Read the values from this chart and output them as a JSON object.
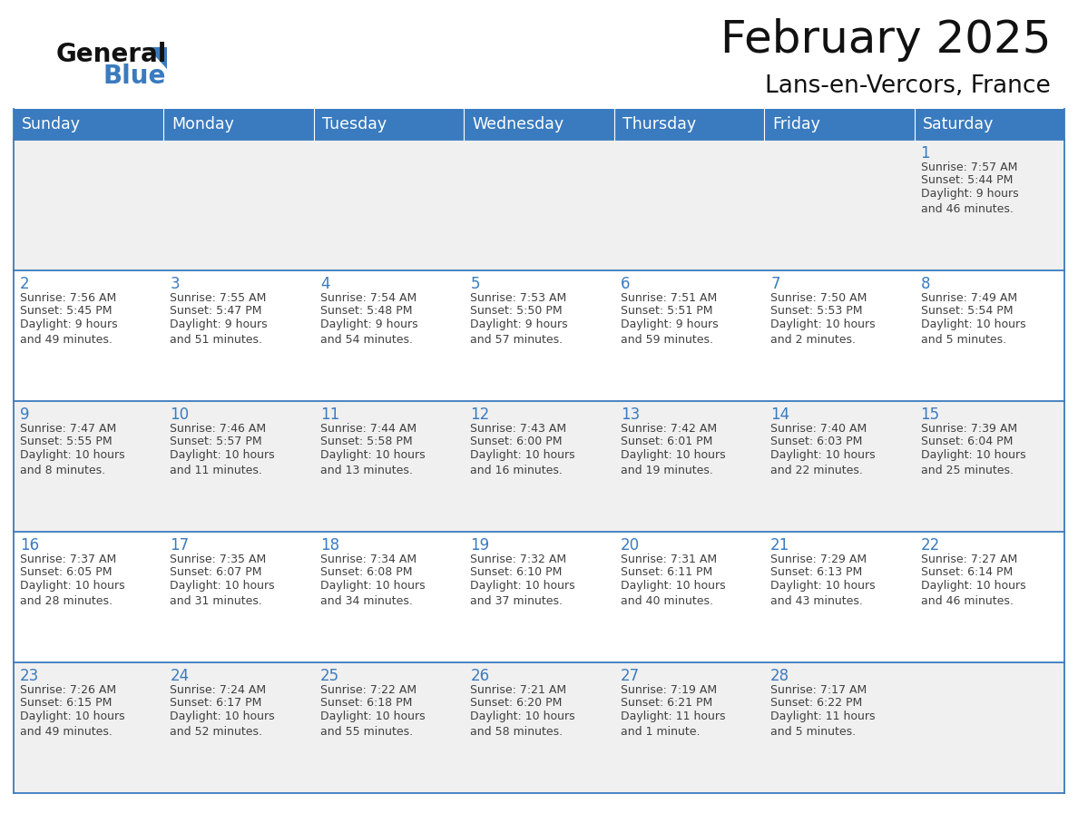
{
  "title": "February 2025",
  "subtitle": "Lans-en-Vercors, France",
  "days_of_week": [
    "Sunday",
    "Monday",
    "Tuesday",
    "Wednesday",
    "Thursday",
    "Friday",
    "Saturday"
  ],
  "header_bg": "#3a7bbf",
  "header_text": "#ffffff",
  "row_bg_odd": "#f0f0f0",
  "row_bg_even": "#ffffff",
  "cell_border": "#3a7bbf",
  "day_number_color": "#3a7bbf",
  "info_text_color": "#404040",
  "title_color": "#111111",
  "subtitle_color": "#111111",
  "logo_general_color": "#111111",
  "logo_blue_color": "#3a7bbf",
  "calendar_data": [
    [
      null,
      null,
      null,
      null,
      null,
      null,
      {
        "day": 1,
        "sunrise": "7:57 AM",
        "sunset": "5:44 PM",
        "daylight": "9 hours\nand 46 minutes."
      }
    ],
    [
      {
        "day": 2,
        "sunrise": "7:56 AM",
        "sunset": "5:45 PM",
        "daylight": "9 hours\nand 49 minutes."
      },
      {
        "day": 3,
        "sunrise": "7:55 AM",
        "sunset": "5:47 PM",
        "daylight": "9 hours\nand 51 minutes."
      },
      {
        "day": 4,
        "sunrise": "7:54 AM",
        "sunset": "5:48 PM",
        "daylight": "9 hours\nand 54 minutes."
      },
      {
        "day": 5,
        "sunrise": "7:53 AM",
        "sunset": "5:50 PM",
        "daylight": "9 hours\nand 57 minutes."
      },
      {
        "day": 6,
        "sunrise": "7:51 AM",
        "sunset": "5:51 PM",
        "daylight": "9 hours\nand 59 minutes."
      },
      {
        "day": 7,
        "sunrise": "7:50 AM",
        "sunset": "5:53 PM",
        "daylight": "10 hours\nand 2 minutes."
      },
      {
        "day": 8,
        "sunrise": "7:49 AM",
        "sunset": "5:54 PM",
        "daylight": "10 hours\nand 5 minutes."
      }
    ],
    [
      {
        "day": 9,
        "sunrise": "7:47 AM",
        "sunset": "5:55 PM",
        "daylight": "10 hours\nand 8 minutes."
      },
      {
        "day": 10,
        "sunrise": "7:46 AM",
        "sunset": "5:57 PM",
        "daylight": "10 hours\nand 11 minutes."
      },
      {
        "day": 11,
        "sunrise": "7:44 AM",
        "sunset": "5:58 PM",
        "daylight": "10 hours\nand 13 minutes."
      },
      {
        "day": 12,
        "sunrise": "7:43 AM",
        "sunset": "6:00 PM",
        "daylight": "10 hours\nand 16 minutes."
      },
      {
        "day": 13,
        "sunrise": "7:42 AM",
        "sunset": "6:01 PM",
        "daylight": "10 hours\nand 19 minutes."
      },
      {
        "day": 14,
        "sunrise": "7:40 AM",
        "sunset": "6:03 PM",
        "daylight": "10 hours\nand 22 minutes."
      },
      {
        "day": 15,
        "sunrise": "7:39 AM",
        "sunset": "6:04 PM",
        "daylight": "10 hours\nand 25 minutes."
      }
    ],
    [
      {
        "day": 16,
        "sunrise": "7:37 AM",
        "sunset": "6:05 PM",
        "daylight": "10 hours\nand 28 minutes."
      },
      {
        "day": 17,
        "sunrise": "7:35 AM",
        "sunset": "6:07 PM",
        "daylight": "10 hours\nand 31 minutes."
      },
      {
        "day": 18,
        "sunrise": "7:34 AM",
        "sunset": "6:08 PM",
        "daylight": "10 hours\nand 34 minutes."
      },
      {
        "day": 19,
        "sunrise": "7:32 AM",
        "sunset": "6:10 PM",
        "daylight": "10 hours\nand 37 minutes."
      },
      {
        "day": 20,
        "sunrise": "7:31 AM",
        "sunset": "6:11 PM",
        "daylight": "10 hours\nand 40 minutes."
      },
      {
        "day": 21,
        "sunrise": "7:29 AM",
        "sunset": "6:13 PM",
        "daylight": "10 hours\nand 43 minutes."
      },
      {
        "day": 22,
        "sunrise": "7:27 AM",
        "sunset": "6:14 PM",
        "daylight": "10 hours\nand 46 minutes."
      }
    ],
    [
      {
        "day": 23,
        "sunrise": "7:26 AM",
        "sunset": "6:15 PM",
        "daylight": "10 hours\nand 49 minutes."
      },
      {
        "day": 24,
        "sunrise": "7:24 AM",
        "sunset": "6:17 PM",
        "daylight": "10 hours\nand 52 minutes."
      },
      {
        "day": 25,
        "sunrise": "7:22 AM",
        "sunset": "6:18 PM",
        "daylight": "10 hours\nand 55 minutes."
      },
      {
        "day": 26,
        "sunrise": "7:21 AM",
        "sunset": "6:20 PM",
        "daylight": "10 hours\nand 58 minutes."
      },
      {
        "day": 27,
        "sunrise": "7:19 AM",
        "sunset": "6:21 PM",
        "daylight": "11 hours\nand 1 minute."
      },
      {
        "day": 28,
        "sunrise": "7:17 AM",
        "sunset": "6:22 PM",
        "daylight": "11 hours\nand 5 minutes."
      },
      null
    ]
  ]
}
